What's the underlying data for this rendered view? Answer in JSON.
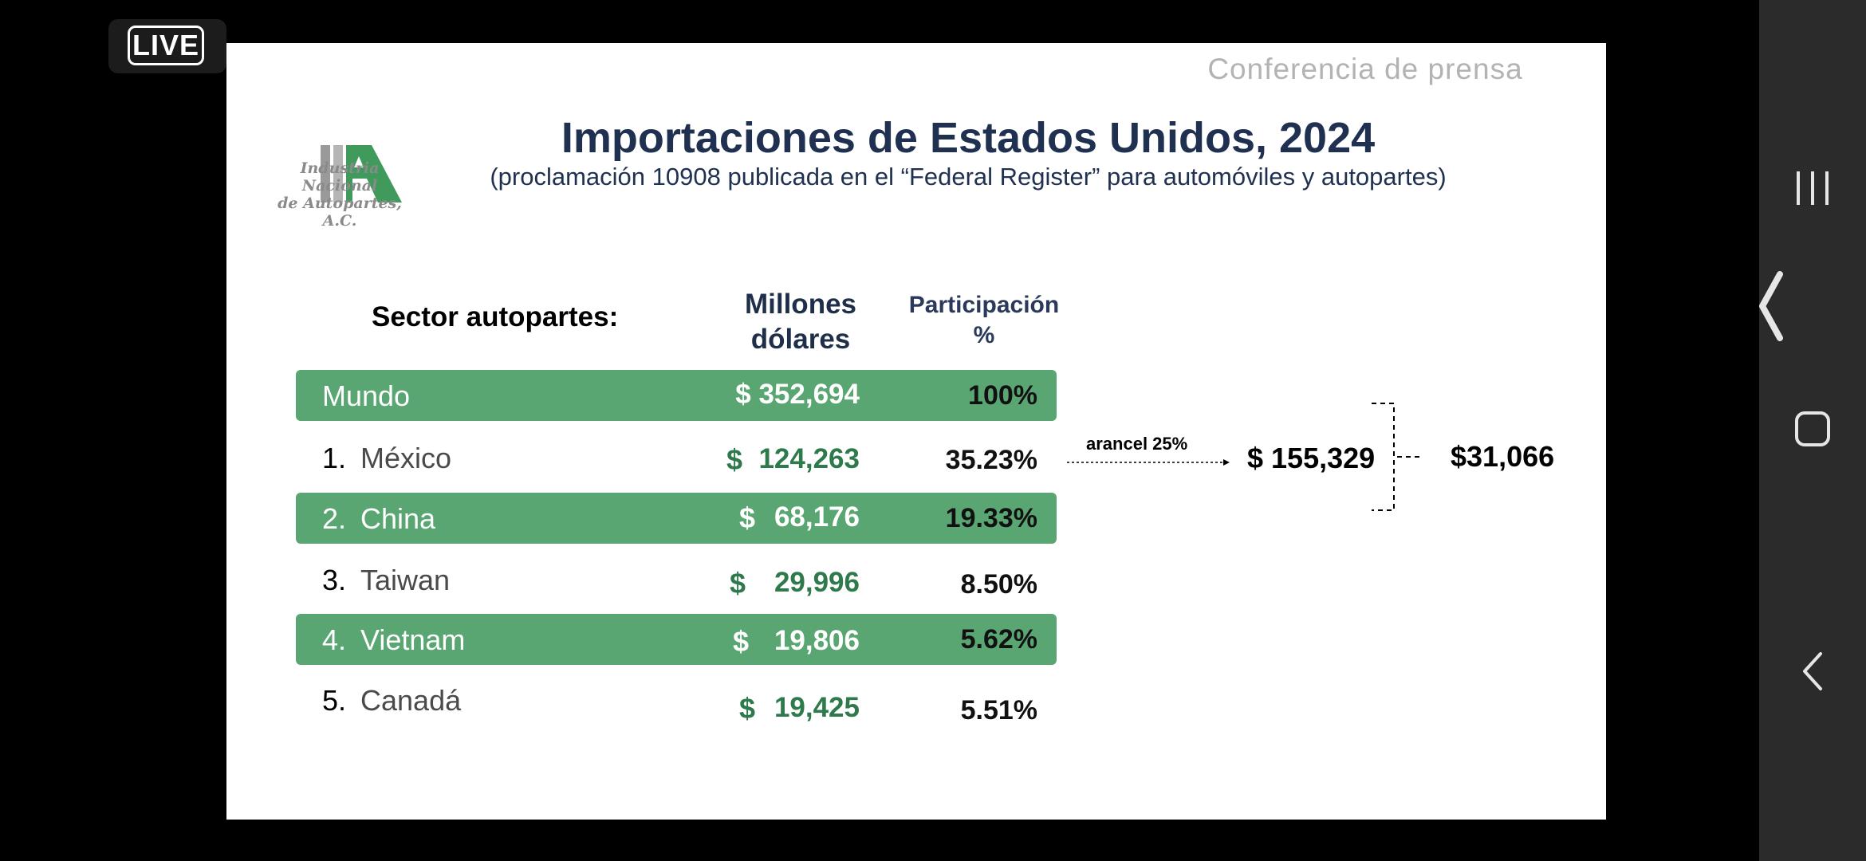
{
  "live_badge": "LIVE",
  "slide": {
    "header_label": "Conferencia de prensa",
    "logo_caption_line1": "Industria Nacional",
    "logo_caption_line2": "de Autopartes, A.C.",
    "title": "Importaciones de Estados Unidos, 2024",
    "subtitle": "(proclamación 10908 publicada en el “Federal Register” para automóviles y autopartes)"
  },
  "table": {
    "sector_label": "Sector  autopartes:",
    "col_millones_line1": "Millones",
    "col_millones_line2": "dólares",
    "col_part_line1": "Participación",
    "col_part_line2": "%",
    "world": {
      "name": "Mundo",
      "amount": "$ 352,694",
      "pct": "100%"
    },
    "rows": [
      {
        "num": "1.",
        "name": "México",
        "dollar": "$",
        "amount": "124,263",
        "pct": "35.23%"
      },
      {
        "num": "2.",
        "name": "China",
        "dollar": "$",
        "amount": "68,176",
        "pct": "19.33%"
      },
      {
        "num": "3.",
        "name": "Taiwan",
        "dollar": "$",
        "amount": "29,996",
        "pct": "8.50%"
      },
      {
        "num": "4.",
        "name": "Vietnam",
        "dollar": "$",
        "amount": "19,806",
        "pct": "5.62%"
      },
      {
        "num": "5.",
        "name": "Canadá",
        "dollar": "$",
        "amount": "19,425",
        "pct": "5.51%"
      }
    ]
  },
  "annotation": {
    "arancel_label": "arancel 25%",
    "total_mexico": "$ 155,329",
    "arancel_total": "$31,066"
  },
  "colors": {
    "row_green": "#5aa673",
    "amount_green": "#2e7a4c",
    "title_navy": "#1f3050"
  },
  "nav": {
    "icons": [
      "recent-apps-icon",
      "side-panel-chevron-icon",
      "home-icon",
      "back-icon"
    ]
  }
}
